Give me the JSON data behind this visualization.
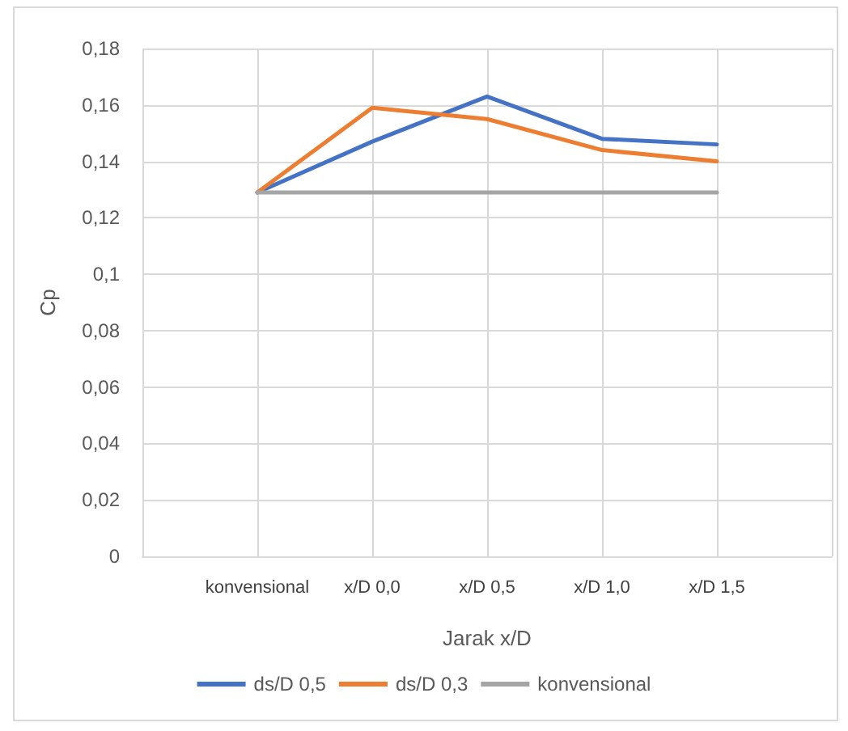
{
  "chart_data": {
    "type": "line",
    "xlabel": "Jarak x/D",
    "ylabel": "Cp",
    "categories": [
      null,
      "konvensional",
      "x/D 0,0",
      "x/D 0,5",
      "x/D 1,0",
      "x/D 1,5",
      null
    ],
    "series": [
      {
        "name": "ds/D 0,5",
        "color": "#4472c4",
        "values": [
          null,
          0.129,
          0.147,
          0.163,
          0.148,
          0.146,
          null
        ]
      },
      {
        "name": "ds/D 0,3",
        "color": "#ed7d31",
        "values": [
          null,
          0.129,
          0.159,
          0.155,
          0.144,
          0.14,
          null
        ]
      },
      {
        "name": "konvensional",
        "color": "#a5a5a5",
        "values": [
          null,
          0.129,
          0.129,
          0.129,
          0.129,
          0.129,
          null
        ]
      }
    ],
    "ylim": [
      0,
      0.18
    ],
    "yticks": [
      {
        "value": 0,
        "label": "0"
      },
      {
        "value": 0.02,
        "label": "0,02"
      },
      {
        "value": 0.04,
        "label": "0,04"
      },
      {
        "value": 0.06,
        "label": "0,06"
      },
      {
        "value": 0.08,
        "label": "0,08"
      },
      {
        "value": 0.1,
        "label": "0,1"
      },
      {
        "value": 0.12,
        "label": "0,12"
      },
      {
        "value": 0.14,
        "label": "0,14"
      },
      {
        "value": 0.16,
        "label": "0,16"
      },
      {
        "value": 0.18,
        "label": "0,18"
      }
    ],
    "grid": true,
    "legend": "bottom",
    "marker": "none",
    "line_style": "solid"
  }
}
